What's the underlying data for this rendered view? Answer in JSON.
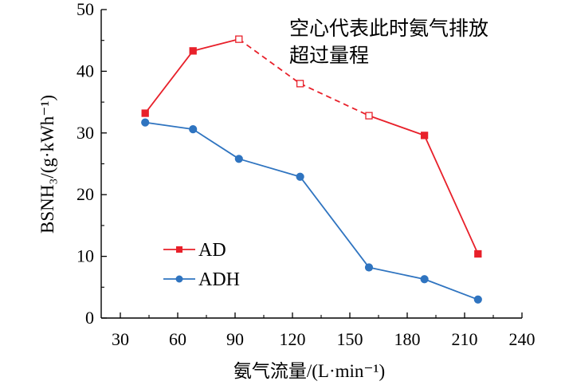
{
  "chart_data": {
    "type": "line",
    "xlabel": "氨气流量/(L·min⁻¹)",
    "ylabel": "BSNH₃/(g·kWh⁻¹)",
    "xlim": [
      20,
      240
    ],
    "ylim": [
      0,
      50
    ],
    "xticks": [
      30,
      60,
      90,
      120,
      150,
      180,
      210,
      240
    ],
    "yticks": [
      0,
      10,
      20,
      30,
      40,
      50
    ],
    "annotation_lines": [
      "空心代表此时氨气排放",
      "超过量程"
    ],
    "colors": {
      "AD": "#e8202a",
      "ADH": "#2f74c0"
    },
    "series": [
      {
        "name": "AD",
        "marker": "square",
        "x": [
          43,
          68,
          92,
          124,
          160,
          189,
          217
        ],
        "values": [
          33.2,
          43.3,
          45.2,
          38.0,
          32.8,
          29.6,
          10.4
        ],
        "hollow": [
          false,
          false,
          true,
          true,
          true,
          false,
          false
        ]
      },
      {
        "name": "ADH",
        "marker": "circle",
        "x": [
          43,
          68,
          92,
          124,
          160,
          189,
          217
        ],
        "values": [
          31.7,
          30.6,
          25.8,
          22.9,
          8.2,
          6.3,
          3.0
        ],
        "hollow": [
          false,
          false,
          false,
          false,
          false,
          false,
          false
        ]
      }
    ],
    "legend": [
      {
        "label": "AD"
      },
      {
        "label": "ADH"
      }
    ]
  }
}
